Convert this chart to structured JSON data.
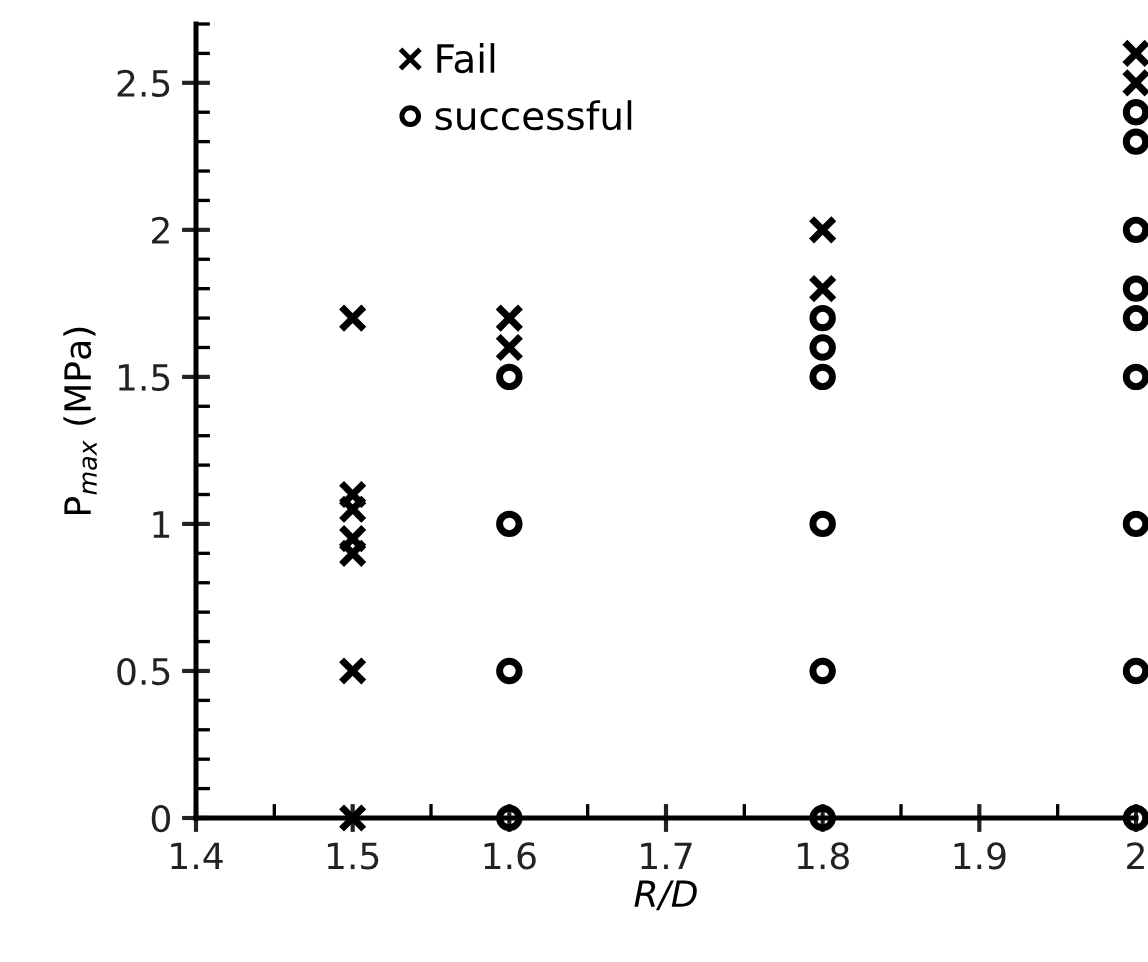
{
  "chart_data": {
    "type": "scatter",
    "xlabel": "R/D",
    "ylabel": "P$_{max}$ (MPa)",
    "xlim": [
      1.4,
      2
    ],
    "ylim": [
      0,
      2.7
    ],
    "xticks": [
      1.4,
      1.5,
      1.6,
      1.7,
      1.8,
      1.9,
      2
    ],
    "yticks": [
      0,
      0.5,
      1,
      1.5,
      2,
      2.5
    ],
    "grid": false,
    "legend": "top left",
    "series": [
      {
        "name": "Fail",
        "color": "#000000",
        "marker": "cross",
        "x": [
          1.5,
          1.5,
          1.5,
          1.5,
          1.5,
          1.5,
          1.5,
          1.6,
          1.6,
          1.8,
          1.8,
          2,
          2
        ],
        "values": [
          0,
          0.5,
          0.9,
          0.95,
          1.05,
          1.1,
          1.7,
          1.6,
          1.7,
          1.8,
          2,
          2.5,
          2.6
        ]
      },
      {
        "name": "successful",
        "color": "#000000",
        "marker": "circle",
        "x": [
          1.6,
          1.6,
          1.6,
          1.6,
          1.8,
          1.8,
          1.8,
          1.8,
          1.8,
          1.8,
          2,
          2,
          2,
          2,
          2,
          2,
          2,
          2,
          2
        ],
        "values": [
          0,
          0.5,
          1,
          1.5,
          0,
          0.5,
          1,
          1.5,
          1.6,
          1.7,
          0,
          0.5,
          1,
          1.5,
          1.7,
          1.8,
          2,
          2.3,
          2.4
        ]
      }
    ]
  }
}
